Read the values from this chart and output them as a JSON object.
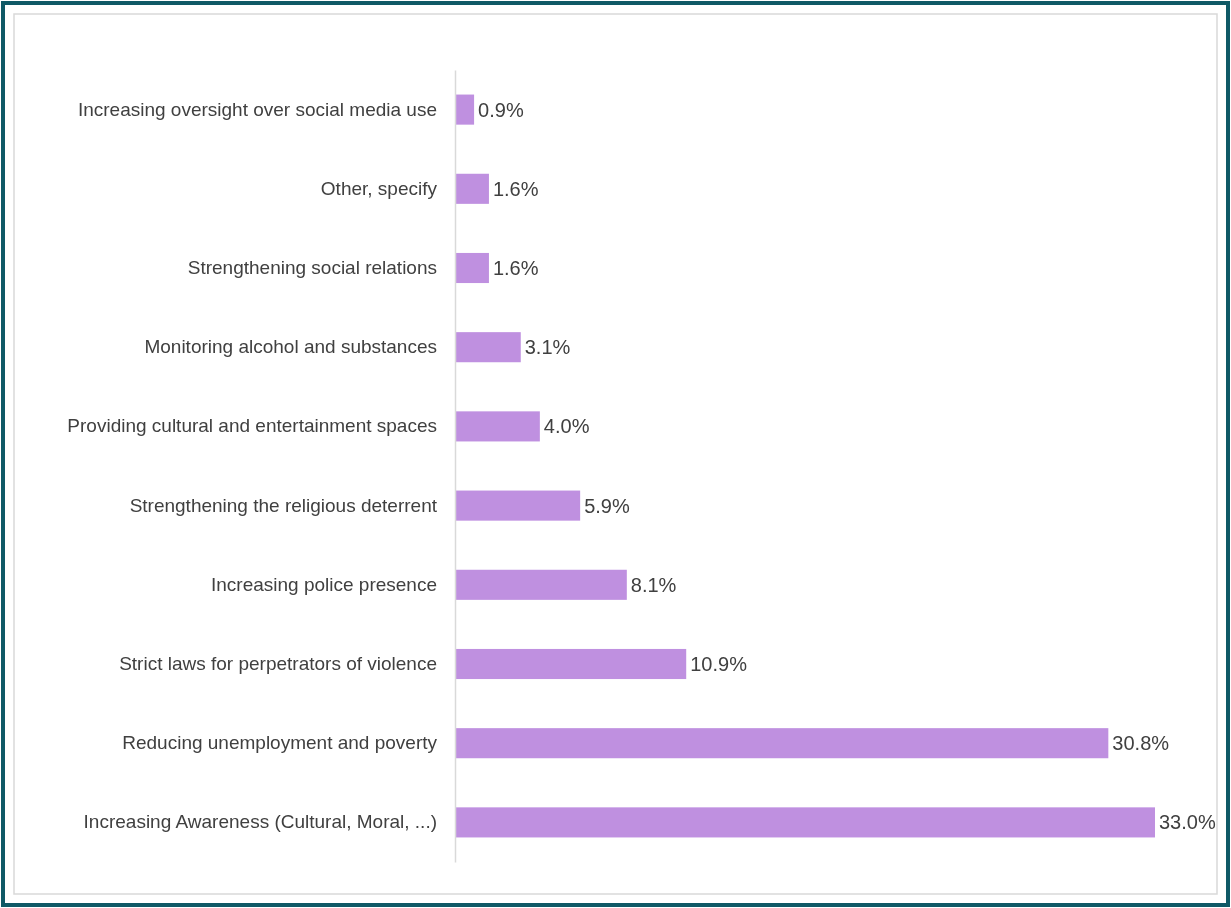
{
  "chart_data": {
    "type": "bar",
    "orientation": "horizontal",
    "categories": [
      "Increasing oversight over social media use",
      "Other, specify",
      "Strengthening social relations",
      "Monitoring alcohol and substances",
      "Providing cultural and entertainment spaces",
      "Strengthening the religious deterrent",
      "Increasing police presence",
      "Strict laws for perpetrators of violence",
      "Reducing unemployment and poverty",
      "Increasing Awareness (Cultural, Moral, ...)"
    ],
    "values": [
      0.9,
      1.6,
      1.6,
      3.1,
      4.0,
      5.9,
      8.1,
      10.9,
      30.8,
      33.0
    ],
    "value_labels": [
      "0.9%",
      "1.6%",
      "1.6%",
      "3.1%",
      "4.0%",
      "5.9%",
      "8.1%",
      "10.9%",
      "30.8%",
      "33.0%"
    ],
    "color": "#bf90e0"
  }
}
